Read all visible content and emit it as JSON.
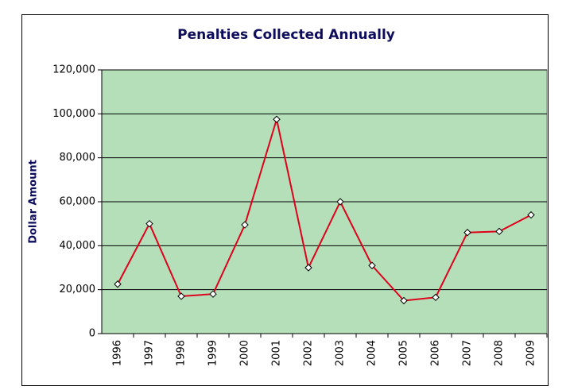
{
  "chart_data": {
    "type": "line",
    "title": "Penalties Collected Annually",
    "y_label": "Dollar Amount",
    "categories": [
      "1996",
      "1997",
      "1998",
      "1999",
      "2000",
      "2001",
      "2002",
      "2003",
      "2004",
      "2005",
      "2006",
      "2007",
      "2008",
      "2009"
    ],
    "series": [
      {
        "name": "Penalties",
        "color": "#e0001b",
        "values": [
          22500,
          50000,
          17000,
          18000,
          49500,
          97500,
          30000,
          60000,
          31000,
          15000,
          16500,
          46000,
          46500,
          54000
        ]
      }
    ],
    "ylim": [
      0,
      120000
    ],
    "yticks": [
      0,
      {
        "value": 20000,
        "label": "20,000"
      },
      {
        "value": 40000,
        "label": "40,000"
      },
      {
        "value": 60000,
        "label": "60,000"
      },
      {
        "value": 80000,
        "label": "80,000"
      },
      {
        "value": 100000,
        "label": "100,000"
      },
      {
        "value": 120000,
        "label": "120,000"
      }
    ],
    "grid": true,
    "plot_background": "#b5dfb9"
  }
}
